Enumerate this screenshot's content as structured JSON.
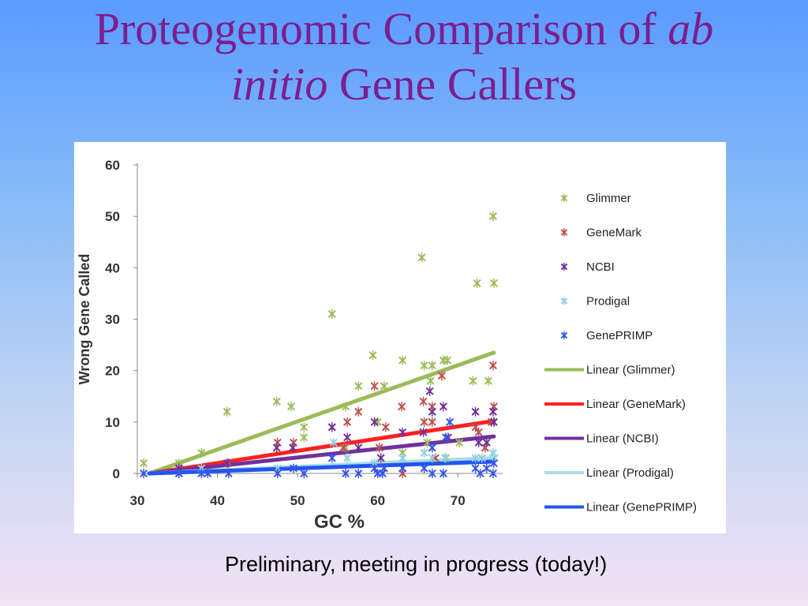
{
  "slide": {
    "title_part1": "Proteogenomic Comparison of ",
    "title_italic1": "ab",
    "title_italic2": "initio",
    "title_part2": " Gene Callers",
    "caption": "Preliminary, meeting in progress (today!)"
  },
  "chart_data": {
    "type": "scatter",
    "xlabel": "GC %",
    "ylabel": "Wrong Gene Called",
    "xlim": [
      30,
      75
    ],
    "ylim": [
      0,
      60
    ],
    "x_ticks": [
      30,
      40,
      50,
      60,
      70
    ],
    "y_ticks": [
      0,
      10,
      20,
      30,
      40,
      50,
      60
    ],
    "grid": false,
    "legend_position": "right",
    "series": [
      {
        "name": "Glimmer",
        "color": "#9bbb59",
        "marker": "asterisk",
        "points": [
          [
            30.8,
            2
          ],
          [
            35.2,
            2
          ],
          [
            38.0,
            4
          ],
          [
            41.2,
            12
          ],
          [
            47.4,
            14
          ],
          [
            49.2,
            13
          ],
          [
            50.8,
            9
          ],
          [
            50.8,
            7
          ],
          [
            54.3,
            31
          ],
          [
            56.0,
            5
          ],
          [
            56.0,
            13
          ],
          [
            57.6,
            17
          ],
          [
            59.4,
            23
          ],
          [
            60.0,
            10
          ],
          [
            60.8,
            17
          ],
          [
            63.1,
            22
          ],
          [
            65.5,
            42
          ],
          [
            65.8,
            21
          ],
          [
            66.6,
            18
          ],
          [
            66.8,
            21
          ],
          [
            68.2,
            22
          ],
          [
            68.7,
            22
          ],
          [
            68.5,
            3
          ],
          [
            71.9,
            18
          ],
          [
            72.4,
            37
          ],
          [
            73.8,
            18
          ],
          [
            74.4,
            50
          ],
          [
            74.5,
            37
          ],
          [
            63.1,
            4
          ],
          [
            66.2,
            6
          ],
          [
            70.2,
            6
          ]
        ]
      },
      {
        "name": "GeneMark",
        "color": "#c0504d",
        "marker": "asterisk",
        "points": [
          [
            35.2,
            1
          ],
          [
            38.0,
            1
          ],
          [
            41.4,
            2
          ],
          [
            47.5,
            6
          ],
          [
            49.5,
            6
          ],
          [
            54.3,
            9
          ],
          [
            55.7,
            5
          ],
          [
            56.2,
            10
          ],
          [
            57.6,
            12
          ],
          [
            59.6,
            17
          ],
          [
            60.2,
            5
          ],
          [
            61.0,
            9
          ],
          [
            63.0,
            13
          ],
          [
            63.1,
            0
          ],
          [
            65.7,
            14
          ],
          [
            65.8,
            10
          ],
          [
            66.8,
            10
          ],
          [
            66.8,
            13
          ],
          [
            68.0,
            19
          ],
          [
            72.2,
            9
          ],
          [
            72.6,
            8
          ],
          [
            73.4,
            5
          ],
          [
            74.4,
            21
          ],
          [
            74.5,
            13
          ],
          [
            74.2,
            10
          ],
          [
            67.2,
            3
          ]
        ]
      },
      {
        "name": "NCBI",
        "color": "#7030a0",
        "marker": "asterisk",
        "points": [
          [
            35.2,
            1
          ],
          [
            41.2,
            2
          ],
          [
            47.4,
            5
          ],
          [
            49.4,
            5
          ],
          [
            54.3,
            9
          ],
          [
            56.2,
            7
          ],
          [
            57.6,
            5
          ],
          [
            59.6,
            10
          ],
          [
            60.4,
            3
          ],
          [
            63.1,
            8
          ],
          [
            65.7,
            8
          ],
          [
            66.5,
            16
          ],
          [
            66.8,
            12
          ],
          [
            68.2,
            13
          ],
          [
            68.8,
            7
          ],
          [
            72.2,
            12
          ],
          [
            72.6,
            6
          ],
          [
            73.6,
            6
          ],
          [
            74.4,
            12
          ],
          [
            74.5,
            10
          ]
        ]
      },
      {
        "name": "Prodigal",
        "color": "#92d0e0",
        "marker": "asterisk",
        "points": [
          [
            35.2,
            0
          ],
          [
            38.0,
            1
          ],
          [
            47.5,
            1
          ],
          [
            54.5,
            6
          ],
          [
            56.2,
            3
          ],
          [
            59.6,
            2
          ],
          [
            60.8,
            1
          ],
          [
            63.1,
            3
          ],
          [
            65.8,
            4
          ],
          [
            66.8,
            3
          ],
          [
            68.4,
            3
          ],
          [
            72.2,
            3
          ],
          [
            73.0,
            3
          ],
          [
            74.4,
            4
          ],
          [
            74.6,
            3
          ]
        ]
      },
      {
        "name": "GenePRIMP",
        "color": "#3355ee",
        "marker": "asterisk",
        "points": [
          [
            30.8,
            0
          ],
          [
            35.2,
            0
          ],
          [
            38.0,
            0
          ],
          [
            38.8,
            0
          ],
          [
            41.4,
            0
          ],
          [
            47.5,
            0
          ],
          [
            49.5,
            1
          ],
          [
            50.8,
            0
          ],
          [
            54.3,
            3
          ],
          [
            56.0,
            0
          ],
          [
            57.6,
            0
          ],
          [
            59.6,
            1
          ],
          [
            60.0,
            0
          ],
          [
            60.8,
            1
          ],
          [
            60.6,
            0
          ],
          [
            63.1,
            1
          ],
          [
            65.8,
            1
          ],
          [
            66.8,
            5
          ],
          [
            66.8,
            0
          ],
          [
            68.2,
            0
          ],
          [
            68.5,
            7
          ],
          [
            69.0,
            10
          ],
          [
            72.2,
            1
          ],
          [
            72.8,
            0
          ],
          [
            73.6,
            1
          ],
          [
            74.4,
            0
          ],
          [
            74.5,
            2
          ]
        ]
      }
    ],
    "trendlines": [
      {
        "name": "Linear (Glimmer)",
        "color": "#9bbb59",
        "from": [
          31.5,
          0
        ],
        "to": [
          74.5,
          23.5
        ]
      },
      {
        "name": "Linear (GeneMark)",
        "color": "#ff2020",
        "from": [
          31.5,
          0
        ],
        "to": [
          74.5,
          10.2
        ]
      },
      {
        "name": "Linear (NCBI)",
        "color": "#7030a0",
        "from": [
          31.5,
          0
        ],
        "to": [
          74.5,
          7.2
        ]
      },
      {
        "name": "Linear (Prodigal)",
        "color": "#a8dbe8",
        "from": [
          31.5,
          0
        ],
        "to": [
          74.5,
          3.0
        ]
      },
      {
        "name": "Linear (GenePRIMP)",
        "color": "#2255ee",
        "from": [
          31.5,
          0
        ],
        "to": [
          74.5,
          2.3
        ]
      }
    ]
  }
}
